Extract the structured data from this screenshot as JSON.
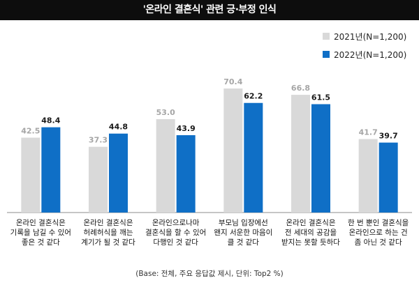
{
  "chart_data": {
    "type": "bar",
    "title": "'온라인 결혼식' 관련 긍·부정 인식",
    "categories": [
      "온라인 결혼식은\n기록을 남길 수 있어\n좋은 것 같다",
      "온라인 결혼식은\n허례허식을 깨는\n계기가 될 것 같다",
      "온라인으로나마\n결혼식을 할 수 있어\n다행인 것 같다",
      "부모님 입장에선\n왠지 서운한 마음이\n클 것 같다",
      "온라인 결혼식은\n전 세대의 공감을\n받지는 못할 듯하다",
      "한 번 뿐인 결혼식을\n온라인으로 하는 건\n좀 아닌 것 같다"
    ],
    "series": [
      {
        "name": "2021년(N=1,200)",
        "values": [
          42.5,
          37.3,
          53.0,
          70.4,
          66.8,
          41.7
        ],
        "color": "#d9d9d9",
        "label_color": "#a6a6a6"
      },
      {
        "name": "2022년(N=1,200)",
        "values": [
          48.4,
          44.8,
          43.9,
          62.2,
          61.5,
          39.7
        ],
        "color": "#0f6fc6",
        "label_color": "#1a1a1a"
      }
    ],
    "ylim": [
      0,
      70.4
    ],
    "value_labels": [
      [
        "42.5",
        "37.3",
        "53.0",
        "70.4",
        "66.8",
        "41.7"
      ],
      [
        "48.4",
        "44.8",
        "43.9",
        "62.2",
        "61.5",
        "39.7"
      ]
    ],
    "legend_position": "top-right",
    "grid": false
  },
  "footnote": "(Base: 전체, 주요 응답값 제시, 단위: Top2 %)"
}
